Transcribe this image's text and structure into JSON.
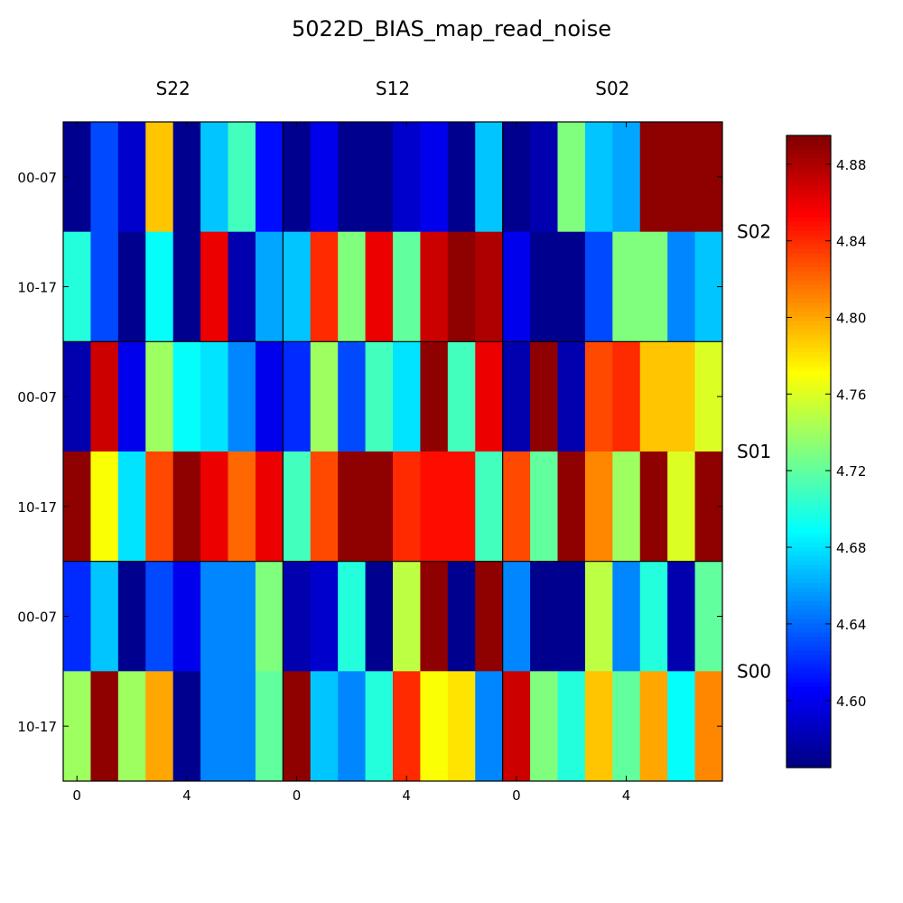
{
  "chart_data": {
    "type": "heatmap",
    "title": "5022D_BIAS_map_read_noise",
    "column_groups": [
      "S22",
      "S12",
      "S02"
    ],
    "row_groups": [
      "S02",
      "S01",
      "S00"
    ],
    "row_labels": [
      "00-07",
      "10-17",
      "00-07",
      "10-17",
      "00-07",
      "10-17"
    ],
    "x_tick_labels": [
      "0",
      "4",
      "0",
      "4",
      "0",
      "4"
    ],
    "colorbar": {
      "min": 4.565,
      "max": 4.895,
      "ticks": [
        "4.60",
        "4.64",
        "4.68",
        "4.72",
        "4.76",
        "4.80",
        "4.84",
        "4.88"
      ],
      "colormap": "jet"
    },
    "values": [
      [
        4.57,
        4.63,
        4.59,
        4.79,
        4.57,
        4.67,
        4.71,
        4.61,
        4.57,
        4.6,
        4.57,
        4.57,
        4.59,
        4.6,
        4.57,
        4.67,
        4.57,
        4.58,
        4.73,
        4.67,
        4.66,
        4.89,
        4.89,
        4.89
      ],
      [
        4.7,
        4.63,
        4.57,
        4.69,
        4.57,
        4.86,
        4.58,
        4.66,
        4.67,
        4.84,
        4.73,
        4.86,
        4.72,
        4.87,
        4.89,
        4.88,
        4.6,
        4.57,
        4.57,
        4.63,
        4.73,
        4.73,
        4.65,
        4.67
      ],
      [
        4.58,
        4.87,
        4.6,
        4.74,
        4.69,
        4.68,
        4.65,
        4.6,
        4.62,
        4.74,
        4.63,
        4.71,
        4.68,
        4.89,
        4.71,
        4.86,
        4.58,
        4.89,
        4.58,
        4.83,
        4.84,
        4.79,
        4.79,
        4.76
      ],
      [
        4.89,
        4.77,
        4.68,
        4.83,
        4.89,
        4.86,
        4.82,
        4.86,
        4.71,
        4.83,
        4.89,
        4.89,
        4.84,
        4.85,
        4.85,
        4.71,
        4.83,
        4.72,
        4.89,
        4.81,
        4.74,
        4.89,
        4.76,
        4.89
      ],
      [
        4.62,
        4.67,
        4.57,
        4.63,
        4.6,
        4.65,
        4.65,
        4.73,
        4.58,
        4.59,
        4.7,
        4.57,
        4.75,
        4.89,
        4.57,
        4.89,
        4.65,
        4.57,
        4.57,
        4.75,
        4.65,
        4.7,
        4.58,
        4.72
      ],
      [
        4.74,
        4.89,
        4.74,
        4.8,
        4.57,
        4.65,
        4.65,
        4.72,
        4.89,
        4.67,
        4.65,
        4.7,
        4.84,
        4.77,
        4.78,
        4.65,
        4.87,
        4.73,
        4.7,
        4.79,
        4.72,
        4.8,
        4.69,
        4.81
      ]
    ]
  }
}
